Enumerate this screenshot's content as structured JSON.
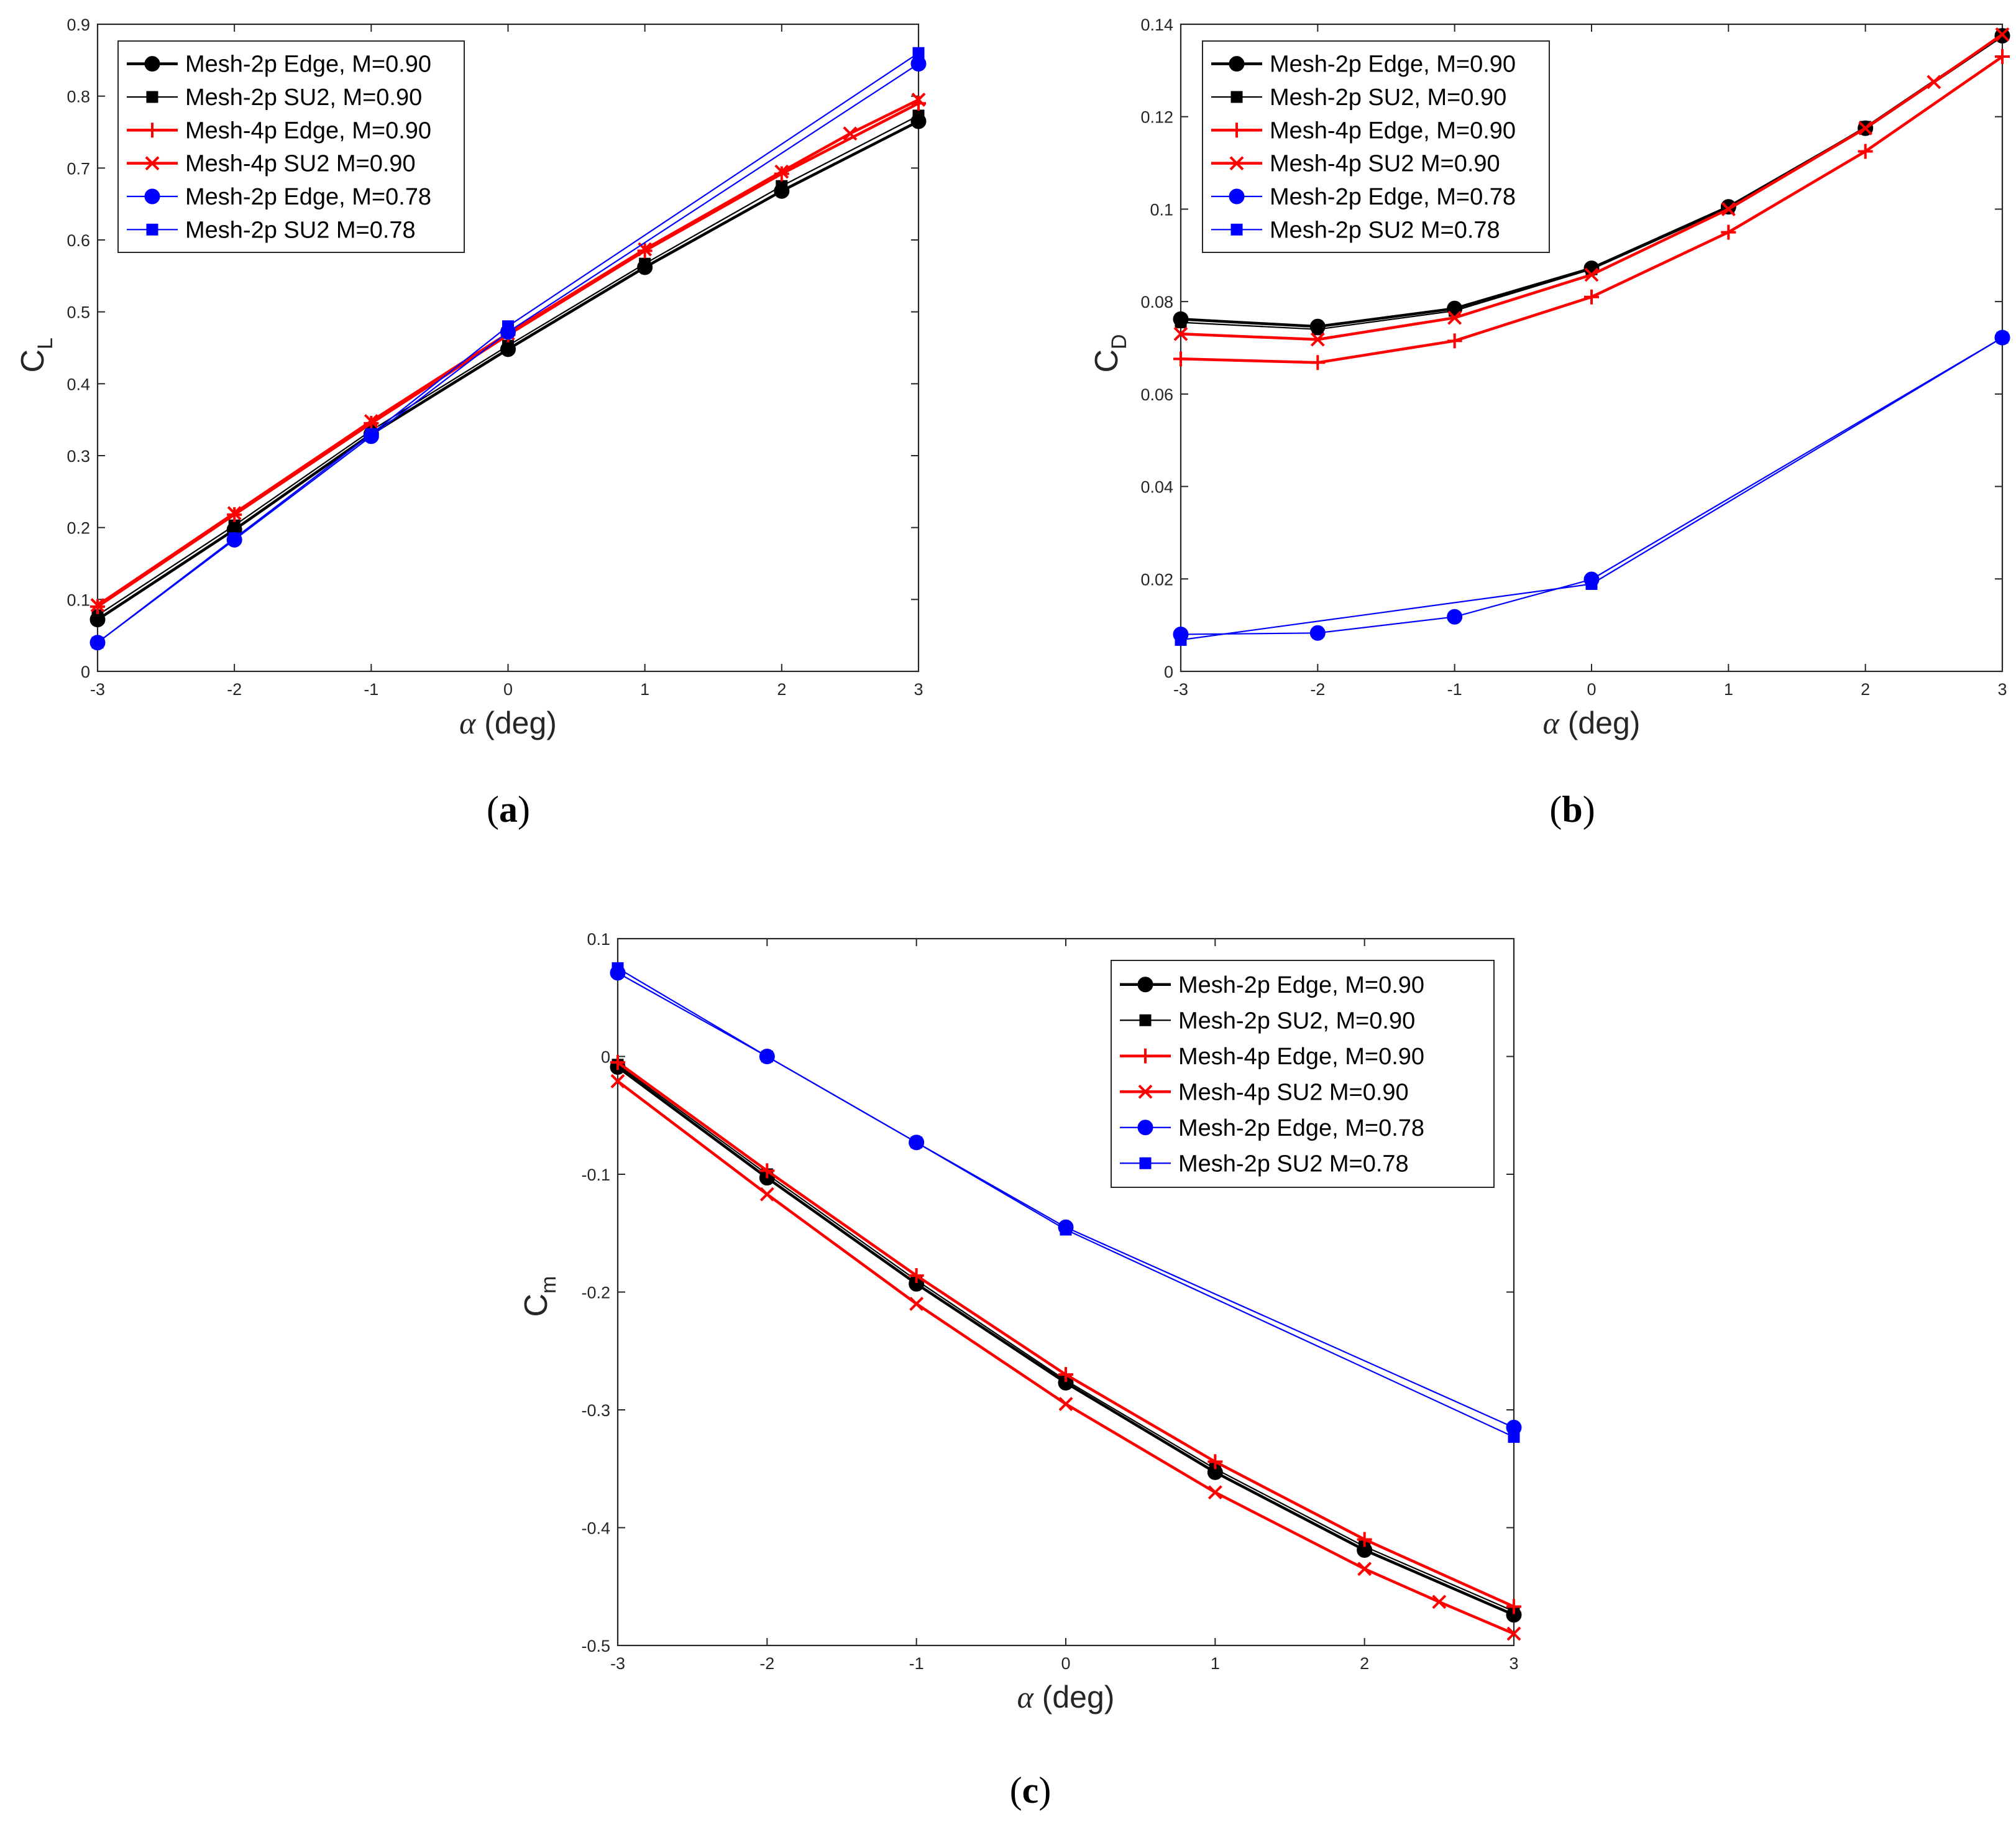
{
  "colors": {
    "black": "#000000",
    "red": "#ff0000",
    "blue": "#0000ff",
    "axis": "#262626"
  },
  "chart_data": [
    {
      "type": "line",
      "panel_label": "a",
      "xlabel_symbol": "α",
      "xlabel_unit": " (deg)",
      "ylabel_main": "C",
      "ylabel_sub": "L",
      "xlim": [
        -3,
        3
      ],
      "ylim": [
        0,
        0.9
      ],
      "xticks": [
        "-3",
        "-2",
        "-1",
        "0",
        "1",
        "2",
        "3"
      ],
      "yticks": [
        "0",
        "0.1",
        "0.2",
        "0.3",
        "0.4",
        "0.5",
        "0.6",
        "0.7",
        "0.8",
        "0.9"
      ],
      "legend_position": "top-left",
      "series": [
        {
          "name": "Mesh-2p Edge, M=0.90",
          "color": "black",
          "marker": "circle",
          "width": "thick",
          "x": [
            -3,
            -2,
            -1,
            0,
            1,
            2,
            3
          ],
          "y": [
            0.072,
            0.197,
            0.33,
            0.448,
            0.562,
            0.668,
            0.765
          ]
        },
        {
          "name": "Mesh-2p SU2, M=0.90",
          "color": "black",
          "marker": "square",
          "width": "thin",
          "x": [
            -3,
            -2,
            -1,
            0,
            1,
            2,
            3
          ],
          "y": [
            0.078,
            0.203,
            0.335,
            0.453,
            0.567,
            0.675,
            0.773
          ]
        },
        {
          "name": "Mesh-4p Edge, M=0.90",
          "color": "red",
          "marker": "plus",
          "width": "thick",
          "x": [
            -3,
            -2,
            -1,
            0,
            1,
            2,
            3
          ],
          "y": [
            0.09,
            0.218,
            0.345,
            0.468,
            0.585,
            0.692,
            0.79
          ]
        },
        {
          "name": "Mesh-4p SU2 M=0.90",
          "color": "red",
          "marker": "x",
          "width": "thick",
          "x": [
            -3,
            -2,
            -1,
            0,
            1,
            2,
            2.5,
            3
          ],
          "y": [
            0.092,
            0.22,
            0.348,
            0.47,
            0.587,
            0.695,
            0.748,
            0.795
          ]
        },
        {
          "name": "Mesh-2p Edge, M=0.78",
          "color": "blue",
          "marker": "circle",
          "width": "thin",
          "x": [
            -3,
            -2,
            -1,
            0,
            3
          ],
          "y": [
            0.04,
            0.183,
            0.327,
            0.472,
            0.845
          ]
        },
        {
          "name": "Mesh-2p SU2 M=0.78",
          "color": "blue",
          "marker": "square",
          "width": "thin",
          "x": [
            -3,
            -2,
            -1,
            0,
            3
          ],
          "y": [
            0.04,
            0.185,
            0.33,
            0.48,
            0.86
          ]
        }
      ]
    },
    {
      "type": "line",
      "panel_label": "b",
      "xlabel_symbol": "α",
      "xlabel_unit": " (deg)",
      "ylabel_main": "C",
      "ylabel_sub": "D",
      "xlim": [
        -3,
        3
      ],
      "ylim": [
        0,
        0.14
      ],
      "xticks": [
        "-3",
        "-2",
        "-1",
        "0",
        "1",
        "2",
        "3"
      ],
      "yticks": [
        "0",
        "0.02",
        "0.04",
        "0.06",
        "0.08",
        "0.1",
        "0.12",
        "0.14"
      ],
      "legend_position": "top-left",
      "series": [
        {
          "name": "Mesh-2p Edge, M=0.90",
          "color": "black",
          "marker": "circle",
          "width": "thick",
          "x": [
            -3,
            -2,
            -1,
            0,
            1,
            2,
            3
          ],
          "y": [
            0.0762,
            0.0746,
            0.0785,
            0.0872,
            0.1005,
            0.1175,
            0.1375
          ]
        },
        {
          "name": "Mesh-2p SU2, M=0.90",
          "color": "black",
          "marker": "square",
          "width": "thin",
          "x": [
            -3,
            -2,
            -1,
            0,
            1,
            2,
            3
          ],
          "y": [
            0.0755,
            0.074,
            0.078,
            0.087,
            0.1002,
            0.1178,
            0.1378
          ]
        },
        {
          "name": "Mesh-4p Edge, M=0.90",
          "color": "red",
          "marker": "plus",
          "width": "thick",
          "x": [
            -3,
            -2,
            -1,
            0,
            1,
            2,
            3
          ],
          "y": [
            0.0676,
            0.0668,
            0.0715,
            0.081,
            0.095,
            0.1125,
            0.133
          ]
        },
        {
          "name": "Mesh-4p SU2 M=0.90",
          "color": "red",
          "marker": "x",
          "width": "thick",
          "x": [
            -3,
            -2,
            -1,
            0,
            1,
            2,
            2.5,
            3
          ],
          "y": [
            0.073,
            0.0718,
            0.0765,
            0.0858,
            0.1,
            0.1175,
            0.1275,
            0.1378
          ]
        },
        {
          "name": "Mesh-2p Edge, M=0.78",
          "color": "blue",
          "marker": "circle",
          "width": "thin",
          "x": [
            -3,
            -2,
            -1,
            0,
            3
          ],
          "y": [
            0.008,
            0.0083,
            0.0118,
            0.0199,
            0.0722
          ]
        },
        {
          "name": "Mesh-2p SU2 M=0.78",
          "color": "blue",
          "marker": "square",
          "width": "thin",
          "x": [
            -3,
            0,
            3
          ],
          "y": [
            0.0068,
            0.0189,
            0.0722
          ]
        }
      ]
    },
    {
      "type": "line",
      "panel_label": "c",
      "xlabel_symbol": "α",
      "xlabel_unit": " (deg)",
      "ylabel_main": "C",
      "ylabel_sub": "m",
      "xlim": [
        -3,
        3
      ],
      "ylim": [
        -0.5,
        0.1
      ],
      "xticks": [
        "-3",
        "-2",
        "-1",
        "0",
        "1",
        "2",
        "3"
      ],
      "yticks": [
        "-0.5",
        "-0.4",
        "-0.3",
        "-0.2",
        "-0.1",
        "0",
        "0.1"
      ],
      "legend_position": "top-right",
      "series": [
        {
          "name": "Mesh-2p Edge, M=0.90",
          "color": "black",
          "marker": "circle",
          "width": "thick",
          "x": [
            -3,
            -2,
            -1,
            0,
            1,
            2,
            3
          ],
          "y": [
            -0.009,
            -0.103,
            -0.193,
            -0.277,
            -0.353,
            -0.419,
            -0.474
          ]
        },
        {
          "name": "Mesh-2p SU2, M=0.90",
          "color": "black",
          "marker": "square",
          "width": "thin",
          "x": [
            -3,
            -2,
            -1,
            0,
            1,
            2,
            3
          ],
          "y": [
            -0.007,
            -0.1,
            -0.19,
            -0.275,
            -0.35,
            -0.416,
            -0.471
          ]
        },
        {
          "name": "Mesh-4p Edge, M=0.90",
          "color": "red",
          "marker": "plus",
          "width": "thick",
          "x": [
            -3,
            -2,
            -1,
            0,
            1,
            2,
            3
          ],
          "y": [
            -0.005,
            -0.097,
            -0.186,
            -0.27,
            -0.344,
            -0.41,
            -0.467
          ]
        },
        {
          "name": "Mesh-4p SU2 M=0.90",
          "color": "red",
          "marker": "x",
          "width": "thick",
          "x": [
            -3,
            -2,
            -1,
            0,
            1,
            2,
            2.5,
            3
          ],
          "y": [
            -0.021,
            -0.117,
            -0.21,
            -0.295,
            -0.37,
            -0.435,
            -0.463,
            -0.49
          ]
        },
        {
          "name": "Mesh-2p Edge, M=0.78",
          "color": "blue",
          "marker": "circle",
          "width": "thin",
          "x": [
            -3,
            -2,
            -1,
            0,
            3
          ],
          "y": [
            0.071,
            0.0,
            -0.073,
            -0.145,
            -0.315
          ]
        },
        {
          "name": "Mesh-2p SU2 M=0.78",
          "color": "blue",
          "marker": "square",
          "width": "thin",
          "x": [
            -3,
            -2,
            -1,
            0,
            3
          ],
          "y": [
            0.075,
            0.0,
            -0.073,
            -0.147,
            -0.323
          ]
        }
      ]
    }
  ]
}
